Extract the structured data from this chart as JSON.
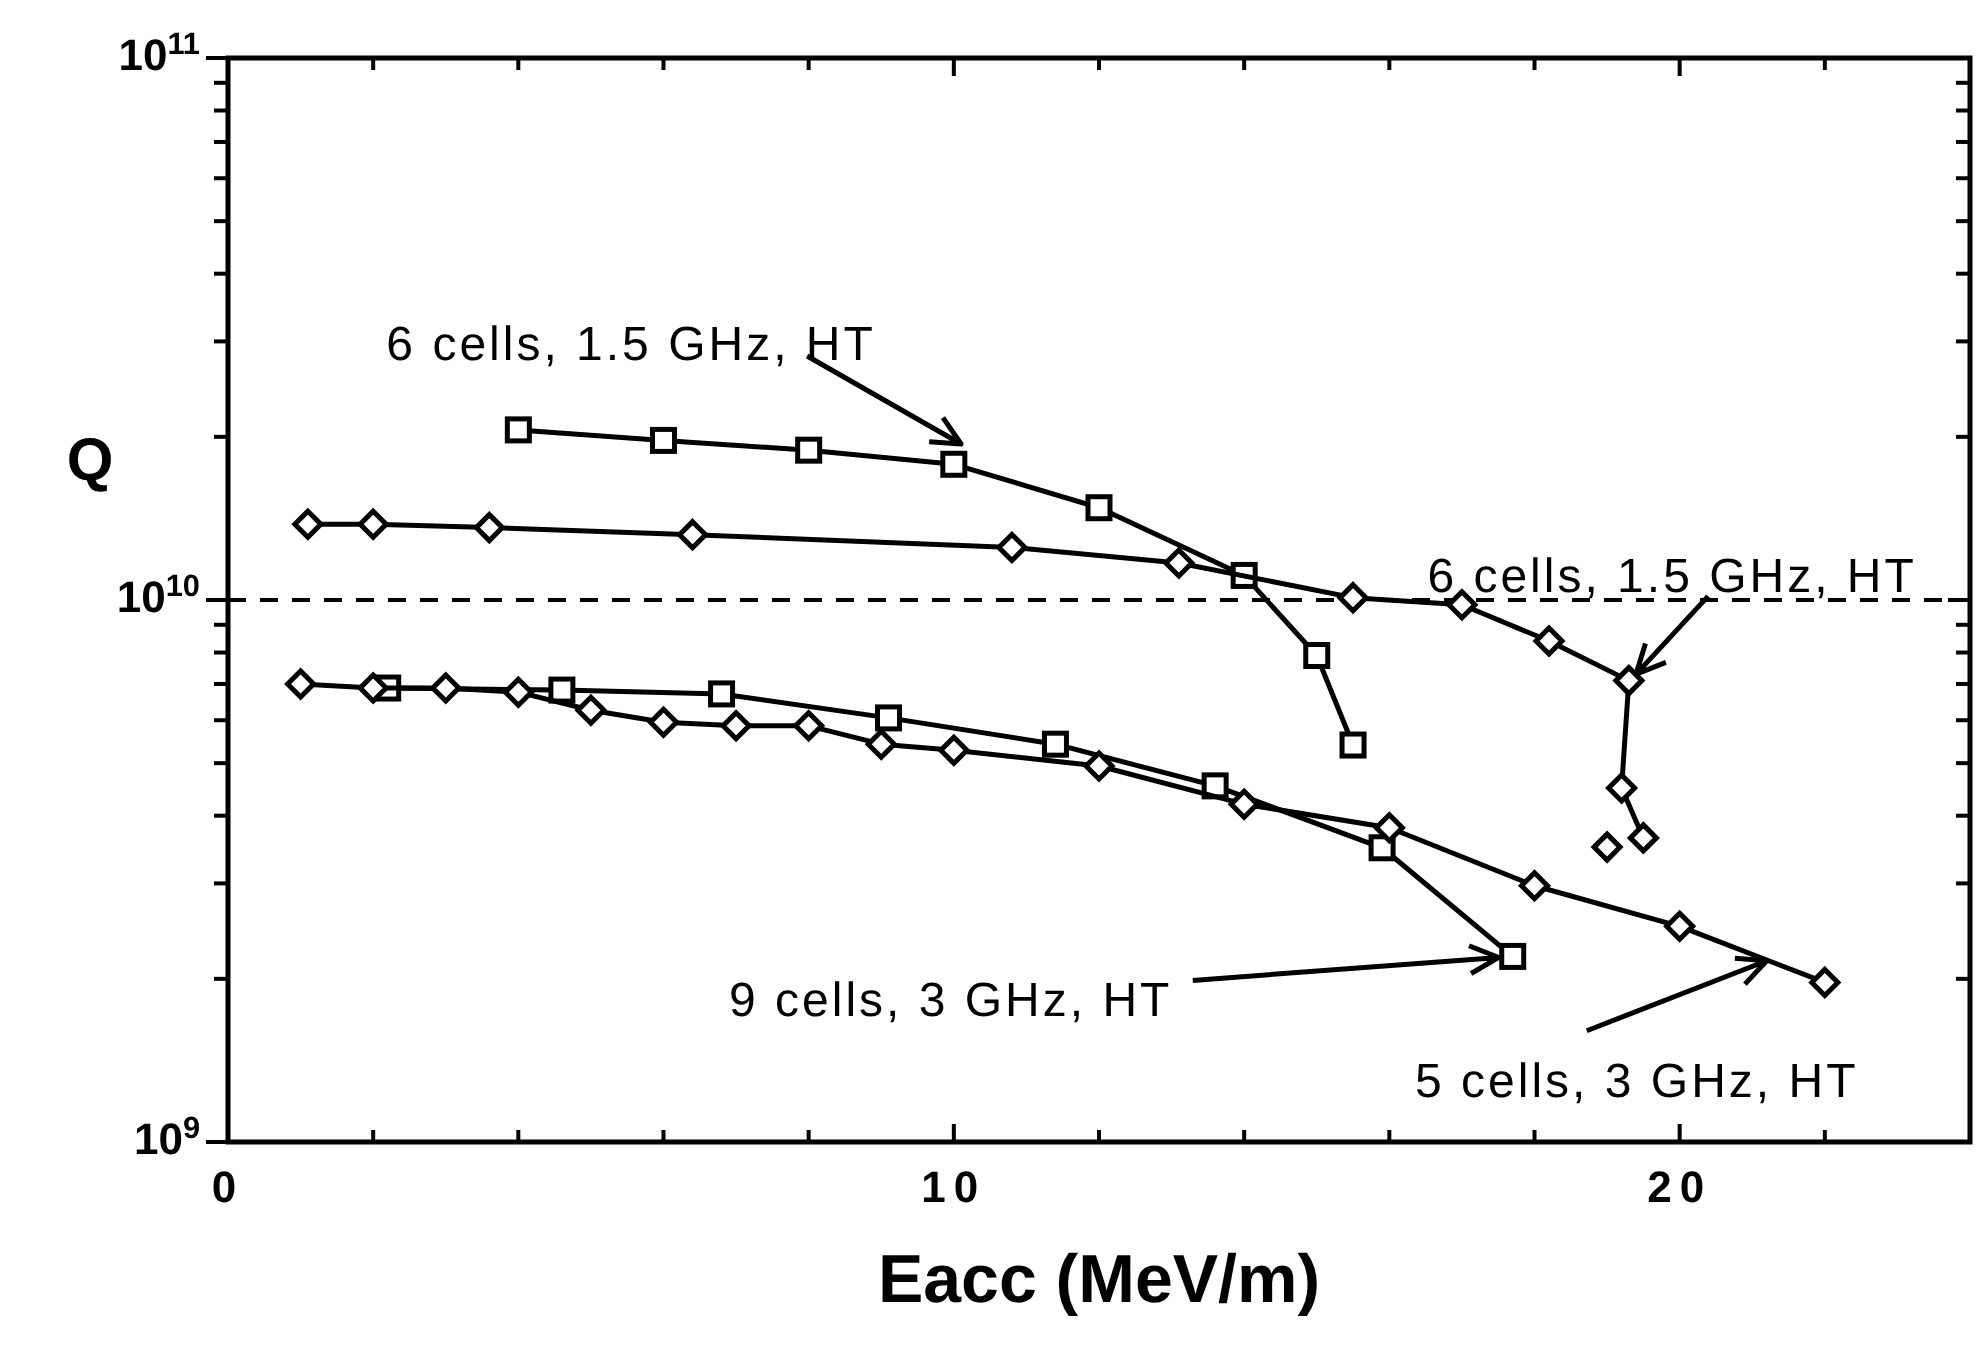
{
  "chart_data": {
    "type": "line",
    "xlabel": "Eacc  (MeV/m)",
    "ylabel": "Q",
    "log": "y",
    "grid": false,
    "line_style": "solid",
    "xlim": [
      0,
      24
    ],
    "xticks": [
      0,
      {
        "value": 2,
        "label": null
      },
      {
        "value": 4,
        "label": null
      },
      {
        "value": 6,
        "label": null
      },
      {
        "value": 8,
        "label": null
      },
      10,
      {
        "value": 12,
        "label": null
      },
      {
        "value": 14,
        "label": null
      },
      {
        "value": 16,
        "label": null
      },
      {
        "value": 18,
        "label": null
      },
      20,
      {
        "value": 22,
        "label": null
      }
    ],
    "ylim": [
      1000000000,
      100000000000
    ],
    "yticks": [
      {
        "value": 1000000000,
        "label": "10$^{9}$"
      },
      {
        "value": 2000000000,
        "label": null
      },
      {
        "value": 3000000000,
        "label": null
      },
      {
        "value": 4000000000,
        "label": null
      },
      {
        "value": 5000000000,
        "label": null
      },
      {
        "value": 6000000000,
        "label": null
      },
      {
        "value": 7000000000,
        "label": null
      },
      {
        "value": 8000000000,
        "label": null
      },
      {
        "value": 9000000000,
        "label": null
      },
      {
        "value": 10000000000,
        "label": "10$^{10}$"
      },
      {
        "value": 20000000000,
        "label": null
      },
      {
        "value": 30000000000,
        "label": null
      },
      {
        "value": 40000000000,
        "label": null
      },
      {
        "value": 50000000000,
        "label": null
      },
      {
        "value": 60000000000,
        "label": null
      },
      {
        "value": 70000000000,
        "label": null
      },
      {
        "value": 80000000000,
        "label": null
      },
      {
        "value": 90000000000,
        "label": null
      },
      {
        "value": 100000000000,
        "label": "10$^{11}$"
      }
    ],
    "series": [
      {
        "marker": "square",
        "color": "#000000",
        "x": [
          4.0,
          6.0,
          8.0,
          10.0,
          12.0,
          14.0,
          15.0,
          15.5
        ],
        "values": [
          20600000000,
          19700000000,
          18900000000,
          17800000000,
          14800000000,
          11100000000,
          7900000000,
          5400000000
        ]
      },
      {
        "marker": "diamond",
        "color": "#000000",
        "x": [
          1.1,
          2.0,
          3.6,
          6.4,
          10.8,
          13.1,
          15.5,
          17.0,
          18.2,
          19.3,
          19.2,
          19.5
        ],
        "values": [
          13800000000,
          13800000000,
          13600000000,
          13200000000,
          12500000000,
          11700000000,
          10100000000,
          9800000000,
          8400000000,
          7100000000,
          4500000000,
          3640000000
        ]
      },
      {
        "type": "scatter",
        "marker": "diamond",
        "color": "#000000",
        "x": [
          19.0
        ],
        "values": [
          3500000000
        ]
      },
      {
        "marker": "square",
        "color": "#000000",
        "x": [
          2.2,
          4.6,
          6.8,
          9.1,
          11.4,
          13.6,
          15.9,
          17.7
        ],
        "values": [
          6880000000,
          6820000000,
          6710000000,
          6060000000,
          5420000000,
          4540000000,
          3490000000,
          2200000000
        ]
      },
      {
        "marker": "diamond",
        "color": "#000000",
        "x": [
          1.0,
          2.0,
          3.0,
          4.0,
          5.0,
          6.0,
          7.0,
          8.0,
          9.0,
          10.0,
          12.0,
          14.0,
          16.0,
          18.0,
          20.0,
          22.0
        ],
        "values": [
          7000000000,
          6880000000,
          6880000000,
          6760000000,
          6260000000,
          5950000000,
          5860000000,
          5860000000,
          5420000000,
          5280000000,
          4940000000,
          4200000000,
          3800000000,
          2970000000,
          2500000000,
          1970000000
        ]
      }
    ],
    "ref_lines": [
      {
        "axis": "y",
        "value": 10000000000,
        "line_style": "dashed",
        "color": "#000000"
      }
    ],
    "annotations": [
      {
        "text": "6 cells, 1.5 GHz, HT",
        "x": 10.1,
        "y": 19400000000
      },
      {
        "text": "6 cells, 1.5 GHz, HT",
        "x": 19.4,
        "y": 7300000000
      },
      {
        "text": "9 cells, 3 GHz, HT",
        "x": 17.7,
        "y": 2200000000
      },
      {
        "text": "5 cells, 3 GHz, HT",
        "x": 21.2,
        "y": 2160000000
      }
    ]
  }
}
